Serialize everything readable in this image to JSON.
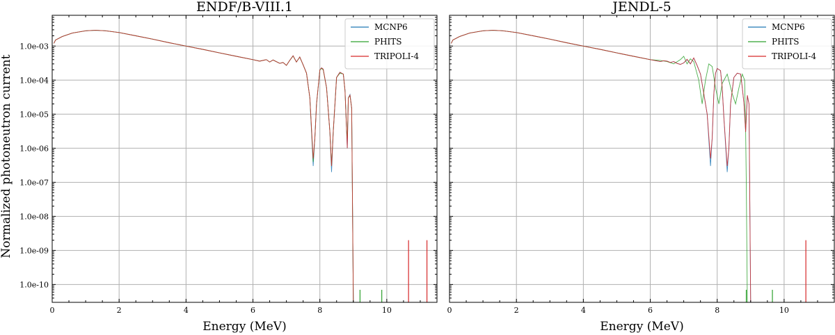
{
  "chart_data": {
    "type": "line",
    "ylabel": "Normalized photoneutron current",
    "xlabel": "Energy (MeV)",
    "yscale": "log",
    "ylim": [
      3e-11,
      0.008
    ],
    "xlim": [
      0,
      11.5
    ],
    "xticks": [
      0,
      2,
      4,
      6,
      8,
      10
    ],
    "xtick_labels": [
      "0",
      "2",
      "4",
      "6",
      "8",
      "10"
    ],
    "yticks": [
      1e-10,
      1e-09,
      1e-08,
      1e-07,
      1e-06,
      1e-05,
      0.0001,
      0.001
    ],
    "ytick_labels": [
      "1.0e-10",
      "1.0e-09",
      "1.0e-08",
      "1.0e-07",
      "1.0e-06",
      "1.0e-05",
      "1.0e-04",
      "1.0e-03"
    ],
    "grid": true,
    "legend_position": "top-right",
    "colors": {
      "MCNP6": "#1f77b4",
      "PHITS": "#2ca02c",
      "TRIPOLI-4": "#d62728"
    },
    "panels": [
      {
        "title": "ENDF/B-VIII.1",
        "legend": [
          "MCNP6",
          "PHITS",
          "TRIPOLI-4"
        ],
        "series": [
          {
            "name": "MCNP6",
            "x": [
              0.05,
              0.1,
              0.3,
              0.6,
              1.0,
              1.3,
              1.6,
              2.0,
              2.5,
              3.0,
              3.5,
              4.0,
              4.5,
              5.0,
              5.5,
              6.0,
              6.2,
              6.4,
              6.5,
              6.6,
              6.8,
              6.9,
              7.0,
              7.1,
              7.2,
              7.3,
              7.4,
              7.5,
              7.6,
              7.7,
              7.8,
              7.85,
              7.9,
              8.0,
              8.05,
              8.1,
              8.2,
              8.3,
              8.35,
              8.4,
              8.5,
              8.6,
              8.7,
              8.75,
              8.8,
              8.82,
              8.85,
              8.9,
              8.95,
              9.0
            ],
            "y": [
              0.0012,
              0.0015,
              0.0019,
              0.0024,
              0.0028,
              0.0029,
              0.0028,
              0.0025,
              0.002,
              0.0016,
              0.00125,
              0.001,
              0.0008,
              0.00063,
              0.0005,
              0.0004,
              0.00036,
              0.0004,
              0.00034,
              0.00039,
              0.00031,
              0.00033,
              0.00027,
              0.00038,
              0.00052,
              0.00034,
              0.00048,
              0.00028,
              0.00016,
              3e-05,
              3e-07,
              2e-06,
              2e-05,
              0.0002,
              0.00023,
              0.00021,
              6e-05,
              3e-06,
              2e-07,
              3e-06,
              0.00012,
              0.00017,
              0.00015,
              5e-05,
              3e-06,
              1e-06,
              3e-05,
              3.8e-05,
              1.5e-05,
              3e-11
            ]
          },
          {
            "name": "PHITS",
            "x": [
              0.05,
              0.1,
              0.3,
              0.6,
              1.0,
              1.3,
              1.6,
              2.0,
              2.5,
              3.0,
              3.5,
              4.0,
              4.5,
              5.0,
              5.5,
              6.0,
              6.2,
              6.4,
              6.5,
              6.6,
              6.8,
              6.9,
              7.0,
              7.1,
              7.2,
              7.3,
              7.4,
              7.5,
              7.6,
              7.7,
              7.8,
              7.85,
              7.9,
              8.0,
              8.05,
              8.1,
              8.2,
              8.3,
              8.35,
              8.4,
              8.5,
              8.6,
              8.7,
              8.75,
              8.8,
              8.82,
              8.85,
              8.9,
              8.95,
              9.0
            ],
            "y": [
              0.0012,
              0.0015,
              0.0019,
              0.0024,
              0.0028,
              0.0029,
              0.0028,
              0.0025,
              0.002,
              0.0016,
              0.00125,
              0.001,
              0.0008,
              0.00063,
              0.0005,
              0.0004,
              0.00036,
              0.0004,
              0.00034,
              0.00039,
              0.00031,
              0.00033,
              0.00027,
              0.00038,
              0.00051,
              0.00034,
              0.00047,
              0.00028,
              0.00016,
              3e-05,
              4e-07,
              2e-06,
              2e-05,
              0.0002,
              0.00022,
              0.0002,
              6e-05,
              3e-06,
              3e-07,
              3e-06,
              0.00012,
              0.00016,
              0.00015,
              5e-05,
              3e-06,
              2e-06,
              3e-05,
              3.5e-05,
              1.5e-05,
              3e-11
            ]
          },
          {
            "name": "TRIPOLI-4",
            "x": [
              0.05,
              0.1,
              0.3,
              0.6,
              1.0,
              1.3,
              1.6,
              2.0,
              2.5,
              3.0,
              3.5,
              4.0,
              4.5,
              5.0,
              5.5,
              6.0,
              6.2,
              6.4,
              6.5,
              6.6,
              6.8,
              6.9,
              7.0,
              7.1,
              7.2,
              7.3,
              7.4,
              7.5,
              7.6,
              7.7,
              7.8,
              7.85,
              7.9,
              8.0,
              8.05,
              8.1,
              8.2,
              8.3,
              8.35,
              8.4,
              8.5,
              8.6,
              8.7,
              8.75,
              8.8,
              8.82,
              8.85,
              8.9,
              8.95,
              9.0
            ],
            "y": [
              0.0012,
              0.0015,
              0.0019,
              0.0024,
              0.0028,
              0.0029,
              0.0028,
              0.0025,
              0.002,
              0.0016,
              0.00125,
              0.001,
              0.0008,
              0.00063,
              0.0005,
              0.0004,
              0.00036,
              0.0004,
              0.00034,
              0.00039,
              0.00031,
              0.00033,
              0.00027,
              0.00038,
              0.00052,
              0.00034,
              0.00048,
              0.00028,
              0.00016,
              3e-05,
              5e-07,
              2e-06,
              2e-05,
              0.0002,
              0.00023,
              0.00021,
              6e-05,
              3e-06,
              3e-07,
              3e-06,
              0.00012,
              0.00017,
              0.00015,
              5e-05,
              3e-06,
              1e-06,
              3e-05,
              3.6e-05,
              1.5e-05,
              3e-11
            ]
          }
        ],
        "spikes": [
          {
            "series": "PHITS",
            "x": 9.2,
            "y": 7e-11
          },
          {
            "series": "PHITS",
            "x": 9.85,
            "y": 7e-11
          },
          {
            "series": "TRIPOLI-4",
            "x": 10.65,
            "y": 2e-09
          },
          {
            "series": "TRIPOLI-4",
            "x": 11.2,
            "y": 2e-09
          }
        ]
      },
      {
        "title": "JENDL-5",
        "legend": [
          "MCNP6",
          "PHITS",
          "TRIPOLI-4"
        ],
        "series": [
          {
            "name": "MCNP6",
            "x": [
              0.05,
              0.1,
              0.3,
              0.6,
              1.0,
              1.3,
              1.6,
              2.0,
              2.5,
              3.0,
              3.5,
              4.0,
              4.5,
              5.0,
              5.5,
              6.0,
              6.3,
              6.4,
              6.5,
              6.6,
              6.7,
              6.8,
              6.9,
              7.0,
              7.1,
              7.2,
              7.3,
              7.4,
              7.5,
              7.6,
              7.7,
              7.8,
              7.85,
              7.9,
              7.95,
              8.0,
              8.1,
              8.15,
              8.2,
              8.3,
              8.35,
              8.4,
              8.5,
              8.6,
              8.7,
              8.75,
              8.8,
              8.85,
              8.9,
              8.95,
              9.0
            ],
            "y": [
              0.0012,
              0.0015,
              0.0019,
              0.0024,
              0.0028,
              0.0029,
              0.0028,
              0.0025,
              0.002,
              0.0016,
              0.00125,
              0.001,
              0.0008,
              0.00063,
              0.0005,
              0.0004,
              0.00035,
              0.00037,
              0.00036,
              0.00033,
              0.00035,
              0.00031,
              0.00029,
              0.00032,
              0.0004,
              0.0003,
              0.00044,
              0.00027,
              0.00015,
              4e-05,
              1e-05,
              3e-07,
              2e-06,
              4e-05,
              0.00016,
              0.00022,
              0.00019,
              6e-05,
              8e-06,
              2e-07,
              1e-06,
              2e-05,
              0.00012,
              0.00016,
              0.00015,
              6e-05,
              2e-05,
              3e-06,
              3.5e-05,
              2e-05,
              3e-11
            ]
          },
          {
            "name": "PHITS",
            "x": [
              0.05,
              0.1,
              0.3,
              0.6,
              1.0,
              1.3,
              1.6,
              2.0,
              2.5,
              3.0,
              3.5,
              4.0,
              4.5,
              5.0,
              5.5,
              6.0,
              6.3,
              6.5,
              6.7,
              6.9,
              7.0,
              7.1,
              7.2,
              7.3,
              7.45,
              7.55,
              7.65,
              7.75,
              7.85,
              7.95,
              8.05,
              8.15,
              8.3,
              8.45,
              8.55,
              8.65,
              8.75,
              8.82,
              8.85,
              8.87,
              8.9
            ],
            "y": [
              0.0012,
              0.0015,
              0.0019,
              0.0024,
              0.0028,
              0.0029,
              0.0028,
              0.0025,
              0.002,
              0.0016,
              0.00125,
              0.001,
              0.0008,
              0.00063,
              0.0005,
              0.0004,
              0.00038,
              0.00035,
              0.0003,
              0.0004,
              0.0005,
              0.0003,
              0.00042,
              0.00035,
              0.0001,
              2e-05,
              0.0001,
              0.0003,
              0.00025,
              6e-05,
              2e-05,
              8e-05,
              0.00015,
              4e-05,
              2e-05,
              6e-05,
              0.00015,
              0.0001,
              3e-06,
              1e-07,
              3e-11
            ]
          },
          {
            "name": "TRIPOLI-4",
            "x": [
              0.05,
              0.1,
              0.3,
              0.6,
              1.0,
              1.3,
              1.6,
              2.0,
              2.5,
              3.0,
              3.5,
              4.0,
              4.5,
              5.0,
              5.5,
              6.0,
              6.3,
              6.4,
              6.5,
              6.6,
              6.7,
              6.8,
              6.9,
              7.0,
              7.1,
              7.2,
              7.3,
              7.4,
              7.5,
              7.6,
              7.7,
              7.8,
              7.85,
              7.9,
              7.95,
              8.0,
              8.1,
              8.15,
              8.2,
              8.3,
              8.35,
              8.4,
              8.5,
              8.6,
              8.7,
              8.75,
              8.8,
              8.85,
              8.9,
              8.95,
              9.0
            ],
            "y": [
              0.0012,
              0.0015,
              0.0019,
              0.0024,
              0.0028,
              0.0029,
              0.0028,
              0.0025,
              0.002,
              0.0016,
              0.00125,
              0.001,
              0.0008,
              0.00063,
              0.0005,
              0.0004,
              0.00035,
              0.00037,
              0.00036,
              0.00033,
              0.00035,
              0.00031,
              0.00029,
              0.00032,
              0.00041,
              0.0003,
              0.00045,
              0.00027,
              0.00015,
              4e-05,
              1e-05,
              5e-07,
              2e-06,
              4e-05,
              0.00016,
              0.00022,
              0.00019,
              6e-05,
              8e-06,
              3e-07,
              1e-06,
              2e-05,
              0.00012,
              0.00016,
              0.00015,
              6e-05,
              2e-05,
              3e-06,
              3.6e-05,
              2e-05,
              3e-11
            ]
          }
        ],
        "spikes": [
          {
            "series": "PHITS",
            "x": 8.87,
            "y": 7e-11
          },
          {
            "series": "PHITS",
            "x": 9.65,
            "y": 7e-11
          },
          {
            "series": "TRIPOLI-4",
            "x": 10.65,
            "y": 2e-09
          }
        ]
      }
    ]
  }
}
